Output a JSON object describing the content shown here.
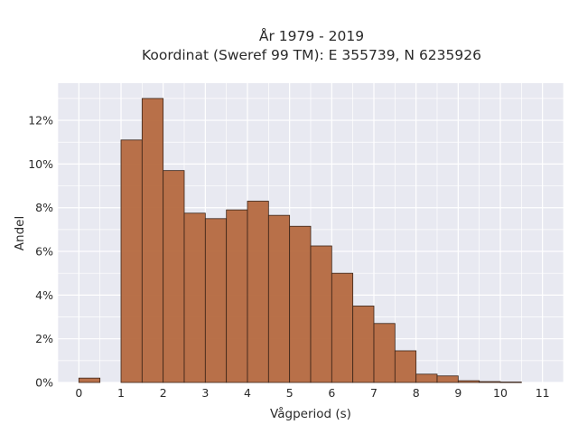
{
  "chart_data": {
    "type": "bar",
    "title": "År 1979 - 2019",
    "subtitle": "Koordinat (Sweref 99 TM): E 355739, N 6235926",
    "xlabel": "Vågperiod (s)",
    "ylabel": "Andel",
    "bin_width": 0.5,
    "x_ticks": [
      0,
      1,
      2,
      3,
      4,
      5,
      6,
      7,
      8,
      9,
      10,
      11
    ],
    "y_ticks": [
      "0%",
      "2%",
      "4%",
      "6%",
      "8%",
      "10%",
      "12%"
    ],
    "xlim": [
      -0.5,
      11.5
    ],
    "ylim": [
      0,
      13.7
    ],
    "bins": [
      {
        "x": 0.0,
        "value": 0.2
      },
      {
        "x": 1.0,
        "value": 11.1
      },
      {
        "x": 1.5,
        "value": 13.0
      },
      {
        "x": 2.0,
        "value": 9.7
      },
      {
        "x": 2.5,
        "value": 7.75
      },
      {
        "x": 3.0,
        "value": 7.5
      },
      {
        "x": 3.5,
        "value": 7.9
      },
      {
        "x": 4.0,
        "value": 8.3
      },
      {
        "x": 4.5,
        "value": 7.65
      },
      {
        "x": 5.0,
        "value": 7.15
      },
      {
        "x": 5.5,
        "value": 6.25
      },
      {
        "x": 6.0,
        "value": 5.0
      },
      {
        "x": 6.5,
        "value": 3.5
      },
      {
        "x": 7.0,
        "value": 2.7
      },
      {
        "x": 7.5,
        "value": 1.45
      },
      {
        "x": 8.0,
        "value": 0.38
      },
      {
        "x": 8.5,
        "value": 0.3
      },
      {
        "x": 9.0,
        "value": 0.08
      },
      {
        "x": 9.5,
        "value": 0.04
      },
      {
        "x": 10.0,
        "value": 0.02
      }
    ],
    "grid": true,
    "colors": {
      "bar_fill": "#b5693f",
      "bar_stroke": "#3a2418",
      "plot_bg": "#e8e9f1",
      "grid": "#ffffff"
    }
  }
}
